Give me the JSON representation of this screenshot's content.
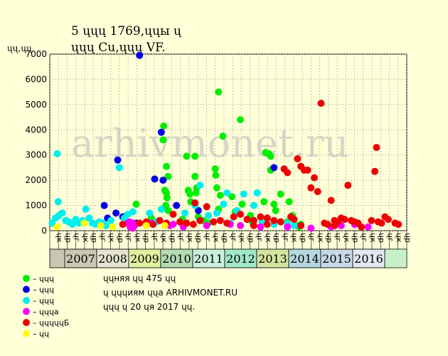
{
  "chart_data": {
    "type": "scatter",
    "title_lines": [
      "5 ųųų 1769,ųųы ų",
      "ųųų Cu,ųųų VF."
    ],
    "ylabel": "ųų,ųų",
    "ylim": [
      0,
      7000
    ],
    "yticks": [
      0,
      1000,
      2000,
      3000,
      4000,
      5000,
      6000,
      7000
    ],
    "grid": true,
    "watermark": "arhivmonet.ru",
    "x_range": [
      2006.53,
      2017.15
    ],
    "month_labels": [
      "ųк",
      "ųр",
      "ųг",
      "ųк",
      "ųр",
      "ųг",
      "ųк",
      "ųр",
      "ųг",
      "ųк",
      "ųр",
      "ųг",
      "ųк",
      "ųр",
      "ųг",
      "ųк",
      "ųр",
      "ųг",
      "ųк",
      "ųр",
      "ųг",
      "ųк",
      "ųр",
      "ųг",
      "ųк",
      "ųр",
      "ųг",
      "ųк",
      "ųр",
      "ųг",
      "ųк",
      "ųр",
      "ųг",
      "ųк",
      "ųр",
      "ųг",
      "ųк",
      "ųр",
      "ųг",
      "ųк",
      "ųр"
    ],
    "years": [
      {
        "label": "2007",
        "color": "#C8C8B4"
      },
      {
        "label": "2008",
        "color": "#E4E4D0"
      },
      {
        "label": "2009",
        "color": "#E0F0A0"
      },
      {
        "label": "2010",
        "color": "#B4DCB4"
      },
      {
        "label": "2011",
        "color": "#C8F0DC"
      },
      {
        "label": "2012",
        "color": "#A0E8C8"
      },
      {
        "label": "2013",
        "color": "#D4E4A0"
      },
      {
        "label": "2014",
        "color": "#B4D8E0"
      },
      {
        "label": "2015",
        "color": "#C8D8E8"
      },
      {
        "label": "2016",
        "color": "#E0E8F0"
      }
    ],
    "series": [
      {
        "name": "– ųųų",
        "color": "#00EE00",
        "points": [
          [
            2009.1,
            1050
          ],
          [
            2009.92,
            4150
          ],
          [
            2009.9,
            3600
          ],
          [
            2009.95,
            1600
          ],
          [
            2010.0,
            2550
          ],
          [
            2010.05,
            2150
          ],
          [
            2010.0,
            1500
          ],
          [
            2010.02,
            1300
          ],
          [
            2009.98,
            1000
          ],
          [
            2010.05,
            800
          ],
          [
            2010.6,
            2950
          ],
          [
            2010.65,
            1600
          ],
          [
            2010.7,
            1450
          ],
          [
            2010.72,
            1150
          ],
          [
            2010.85,
            2950
          ],
          [
            2010.85,
            2150
          ],
          [
            2010.9,
            1700
          ],
          [
            2010.88,
            1500
          ],
          [
            2011.45,
            2450
          ],
          [
            2011.47,
            2200
          ],
          [
            2011.5,
            1700
          ],
          [
            2011.55,
            850
          ],
          [
            2011.55,
            5500
          ],
          [
            2011.6,
            1400
          ],
          [
            2011.68,
            3750
          ],
          [
            2011.95,
            1350
          ],
          [
            2012.2,
            4400
          ],
          [
            2012.25,
            1050
          ],
          [
            2012.5,
            600
          ],
          [
            2012.55,
            350
          ],
          [
            2012.9,
            1150
          ],
          [
            2012.95,
            3100
          ],
          [
            2013.05,
            3050
          ],
          [
            2013.1,
            2950
          ],
          [
            2013.1,
            2400
          ],
          [
            2013.2,
            1050
          ],
          [
            2013.25,
            800
          ],
          [
            2013.4,
            1450
          ],
          [
            2013.6,
            350
          ],
          [
            2013.65,
            1150
          ],
          [
            2013.75,
            600
          ],
          [
            2013.9,
            200
          ],
          [
            2013.95,
            150
          ],
          [
            2014.0,
            250
          ],
          [
            2012.05,
            750
          ],
          [
            2011.25,
            300
          ],
          [
            2011.1,
            400
          ],
          [
            2010.95,
            550
          ],
          [
            2010.48,
            450
          ],
          [
            2009.55,
            500
          ]
        ]
      },
      {
        "name": "– ųųų",
        "color": "#0000EE",
        "points": [
          [
            2009.2,
            6950
          ],
          [
            2008.55,
            2800
          ],
          [
            2009.65,
            2050
          ],
          [
            2009.85,
            3900
          ],
          [
            2009.9,
            2000
          ],
          [
            2008.15,
            1000
          ],
          [
            2008.25,
            500
          ],
          [
            2008.5,
            700
          ],
          [
            2008.7,
            550
          ],
          [
            2010.3,
            1000
          ],
          [
            2010.95,
            800
          ],
          [
            2013.2,
            2500
          ],
          [
            2009.1,
            300
          ]
        ]
      },
      {
        "name": "– ųųų",
        "color": "#00EEEE",
        "points": [
          [
            2006.75,
            3050
          ],
          [
            2006.78,
            1150
          ],
          [
            2006.6,
            300
          ],
          [
            2006.7,
            500
          ],
          [
            2006.8,
            600
          ],
          [
            2006.9,
            700
          ],
          [
            2007.0,
            400
          ],
          [
            2007.1,
            350
          ],
          [
            2007.2,
            250
          ],
          [
            2007.3,
            450
          ],
          [
            2007.4,
            300
          ],
          [
            2007.5,
            400
          ],
          [
            2007.6,
            850
          ],
          [
            2007.7,
            500
          ],
          [
            2007.8,
            300
          ],
          [
            2007.9,
            250
          ],
          [
            2008.0,
            350
          ],
          [
            2008.1,
            300
          ],
          [
            2008.2,
            200
          ],
          [
            2008.35,
            400
          ],
          [
            2008.6,
            2500
          ],
          [
            2008.75,
            500
          ],
          [
            2008.85,
            650
          ],
          [
            2009.0,
            750
          ],
          [
            2009.5,
            700
          ],
          [
            2009.7,
            350
          ],
          [
            2009.85,
            850
          ],
          [
            2010.55,
            700
          ],
          [
            2010.85,
            1000
          ],
          [
            2011.0,
            1800
          ],
          [
            2011.25,
            600
          ],
          [
            2011.5,
            700
          ],
          [
            2011.7,
            1050
          ],
          [
            2011.8,
            1500
          ],
          [
            2011.9,
            300
          ],
          [
            2012.1,
            800
          ],
          [
            2012.3,
            1450
          ],
          [
            2012.6,
            1000
          ],
          [
            2012.7,
            1500
          ],
          [
            2012.85,
            350
          ],
          [
            2013.2,
            250
          ],
          [
            2013.6,
            300
          ],
          [
            2013.8,
            200
          ]
        ]
      },
      {
        "name": "– ųųųа",
        "color": "#FF00FF",
        "points": [
          [
            2008.85,
            300
          ],
          [
            2008.9,
            350
          ],
          [
            2008.95,
            250
          ],
          [
            2009.0,
            300
          ],
          [
            2009.05,
            200
          ],
          [
            2008.92,
            150
          ],
          [
            2009.0,
            100
          ],
          [
            2009.55,
            300
          ],
          [
            2009.6,
            250
          ],
          [
            2010.1,
            200
          ],
          [
            2010.2,
            250
          ],
          [
            2010.5,
            150
          ],
          [
            2011.2,
            200
          ],
          [
            2011.9,
            250
          ],
          [
            2012.2,
            200
          ],
          [
            2012.8,
            150
          ],
          [
            2013.6,
            150
          ],
          [
            2014.3,
            100
          ],
          [
            2014.9,
            150
          ],
          [
            2015.2,
            200
          ],
          [
            2015.6,
            250
          ],
          [
            2016.0,
            150
          ]
        ]
      },
      {
        "name": "– ųųųųųБ",
        "color": "#EE0000",
        "points": [
          [
            2008.7,
            250
          ],
          [
            2009.2,
            300
          ],
          [
            2009.4,
            350
          ],
          [
            2009.6,
            250
          ],
          [
            2009.8,
            400
          ],
          [
            2010.0,
            300
          ],
          [
            2010.2,
            650
          ],
          [
            2010.4,
            350
          ],
          [
            2010.6,
            300
          ],
          [
            2010.8,
            250
          ],
          [
            2010.85,
            1100
          ],
          [
            2011.0,
            400
          ],
          [
            2011.2,
            950
          ],
          [
            2011.4,
            350
          ],
          [
            2011.6,
            400
          ],
          [
            2011.8,
            300
          ],
          [
            2012.0,
            550
          ],
          [
            2012.2,
            650
          ],
          [
            2012.4,
            450
          ],
          [
            2012.6,
            400
          ],
          [
            2012.8,
            550
          ],
          [
            2013.0,
            500
          ],
          [
            2013.2,
            400
          ],
          [
            2013.4,
            350
          ],
          [
            2013.5,
            2450
          ],
          [
            2013.6,
            2300
          ],
          [
            2013.7,
            550
          ],
          [
            2013.8,
            450
          ],
          [
            2013.9,
            2850
          ],
          [
            2014.0,
            2550
          ],
          [
            2014.1,
            2400
          ],
          [
            2014.2,
            2400
          ],
          [
            2014.3,
            1700
          ],
          [
            2014.4,
            2100
          ],
          [
            2014.5,
            1550
          ],
          [
            2014.6,
            5050
          ],
          [
            2014.7,
            300
          ],
          [
            2014.8,
            250
          ],
          [
            2014.9,
            1200
          ],
          [
            2015.0,
            400
          ],
          [
            2015.1,
            350
          ],
          [
            2015.2,
            500
          ],
          [
            2015.3,
            450
          ],
          [
            2015.4,
            1800
          ],
          [
            2015.5,
            400
          ],
          [
            2015.6,
            350
          ],
          [
            2015.7,
            300
          ],
          [
            2016.1,
            400
          ],
          [
            2016.2,
            2350
          ],
          [
            2016.25,
            3300
          ],
          [
            2016.3,
            350
          ],
          [
            2016.4,
            300
          ],
          [
            2016.5,
            550
          ],
          [
            2016.6,
            450
          ],
          [
            2016.8,
            300
          ],
          [
            2016.9,
            250
          ],
          [
            2013.0,
            250
          ],
          [
            2012.6,
            200
          ],
          [
            2014.0,
            200
          ],
          [
            2015.0,
            200
          ],
          [
            2015.8,
            150
          ]
        ]
      },
      {
        "name": "– ųų",
        "color": "#FFFF00",
        "points": [
          [
            2006.75,
            150
          ],
          [
            2007.55,
            300
          ],
          [
            2008.05,
            200
          ],
          [
            2008.4,
            150
          ],
          [
            2009.4,
            200
          ],
          [
            2009.95,
            200
          ]
        ]
      }
    ],
    "notes": [
      "ųųняя ųų 475 ųų",
      "ų ųųųиям ųųа ARHIVMONET.RU",
      "ųųų ų 20 ųя 2017 ųų."
    ]
  }
}
